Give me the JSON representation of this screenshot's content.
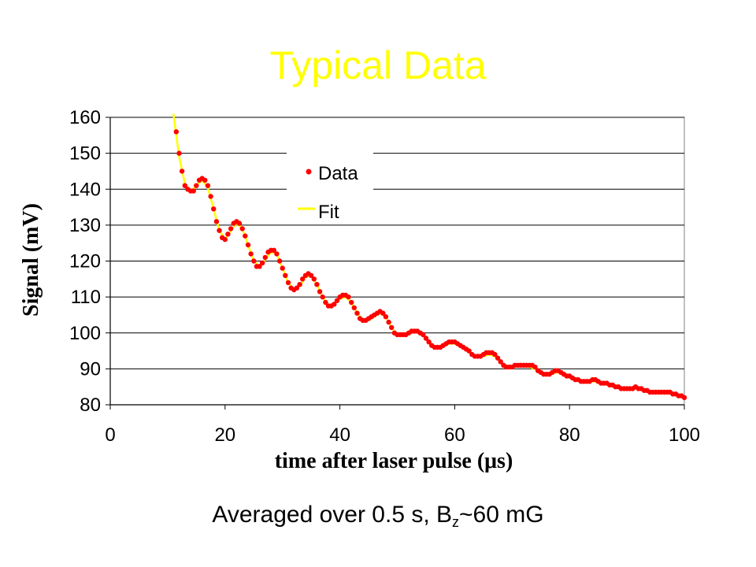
{
  "slide": {
    "title": "Typical Data",
    "caption_pre": "Averaged over 0.5 s, B",
    "caption_sub": "z",
    "caption_post": "~60 mG",
    "title_color": "#ffff00"
  },
  "chart_data": {
    "type": "scatter",
    "xlabel": "time after laser pulse (μs)",
    "ylabel": "Signal (mV)",
    "xlim": [
      0,
      100
    ],
    "ylim": [
      80,
      160
    ],
    "xticks": [
      0,
      20,
      40,
      60,
      80,
      100
    ],
    "yticks": [
      80,
      90,
      100,
      110,
      120,
      130,
      140,
      150,
      160
    ],
    "grid": "horizontal",
    "legend_position": "top-center",
    "series": [
      {
        "name": "Data",
        "kind": "markers",
        "color": "#ff0000",
        "points": [
          [
            11.5,
            156
          ],
          [
            12,
            150
          ],
          [
            12.5,
            145
          ],
          [
            13,
            141
          ],
          [
            13.5,
            140
          ],
          [
            14,
            139.5
          ],
          [
            14.5,
            139.5
          ],
          [
            15,
            141
          ],
          [
            15.5,
            142.5
          ],
          [
            16,
            143
          ],
          [
            16.5,
            142.5
          ],
          [
            17,
            141
          ],
          [
            17.5,
            138
          ],
          [
            18,
            134.5
          ],
          [
            18.5,
            131
          ],
          [
            19,
            128.5
          ],
          [
            19.5,
            126.5
          ],
          [
            20,
            126
          ],
          [
            20.5,
            127.5
          ],
          [
            21,
            129
          ],
          [
            21.5,
            130.5
          ],
          [
            22,
            131
          ],
          [
            22.5,
            130.5
          ],
          [
            23,
            129
          ],
          [
            23.5,
            127
          ],
          [
            24,
            124.5
          ],
          [
            24.5,
            122
          ],
          [
            25,
            120
          ],
          [
            25.5,
            118.5
          ],
          [
            26,
            118.5
          ],
          [
            26.5,
            119.5
          ],
          [
            27,
            121
          ],
          [
            27.5,
            122.5
          ],
          [
            28,
            123
          ],
          [
            28.5,
            123
          ],
          [
            29,
            122
          ],
          [
            29.5,
            120
          ],
          [
            30,
            118
          ],
          [
            30.5,
            116
          ],
          [
            31,
            114
          ],
          [
            31.5,
            112.5
          ],
          [
            32,
            112
          ],
          [
            32.5,
            112.5
          ],
          [
            33,
            113.5
          ],
          [
            33.5,
            115
          ],
          [
            34,
            116
          ],
          [
            34.5,
            116.5
          ],
          [
            35,
            116
          ],
          [
            35.5,
            115
          ],
          [
            36,
            113.5
          ],
          [
            36.5,
            111.5
          ],
          [
            37,
            110
          ],
          [
            37.5,
            108.5
          ],
          [
            38,
            107.5
          ],
          [
            38.5,
            107.5
          ],
          [
            39,
            108
          ],
          [
            39.5,
            109
          ],
          [
            40,
            110
          ],
          [
            40.5,
            110.5
          ],
          [
            41,
            110.5
          ],
          [
            41.5,
            110
          ],
          [
            42,
            108.5
          ],
          [
            42.5,
            107
          ],
          [
            43,
            105.5
          ],
          [
            43.5,
            104
          ],
          [
            44,
            103.5
          ],
          [
            44.5,
            103.5
          ],
          [
            45,
            104
          ],
          [
            45.5,
            104.5
          ],
          [
            46,
            105
          ],
          [
            46.5,
            105.5
          ],
          [
            47,
            106
          ],
          [
            47.5,
            105.5
          ],
          [
            48,
            104.5
          ],
          [
            48.5,
            103
          ],
          [
            49,
            101.5
          ],
          [
            49.5,
            100
          ],
          [
            50,
            99.5
          ],
          [
            50.5,
            99.5
          ],
          [
            51,
            99.5
          ],
          [
            51.5,
            99.5
          ],
          [
            52,
            100
          ],
          [
            52.5,
            100.5
          ],
          [
            53,
            100.5
          ],
          [
            53.5,
            100.5
          ],
          [
            54,
            100
          ],
          [
            54.5,
            99.5
          ],
          [
            55,
            98.5
          ],
          [
            55.5,
            97.5
          ],
          [
            56,
            96.5
          ],
          [
            56.5,
            96
          ],
          [
            57,
            96
          ],
          [
            57.5,
            96
          ],
          [
            58,
            96.5
          ],
          [
            58.5,
            97
          ],
          [
            59,
            97.5
          ],
          [
            59.5,
            97.5
          ],
          [
            60,
            97.5
          ],
          [
            60.5,
            97
          ],
          [
            61,
            96.5
          ],
          [
            61.5,
            96
          ],
          [
            62,
            95.5
          ],
          [
            62.5,
            95
          ],
          [
            63,
            94
          ],
          [
            63.5,
            93.5
          ],
          [
            64,
            93.5
          ],
          [
            64.5,
            93.5
          ],
          [
            65,
            94
          ],
          [
            65.5,
            94.5
          ],
          [
            66,
            94.5
          ],
          [
            66.5,
            94.5
          ],
          [
            67,
            94
          ],
          [
            67.5,
            93
          ],
          [
            68,
            92
          ],
          [
            68.5,
            91
          ],
          [
            69,
            90.5
          ],
          [
            69.5,
            90.5
          ],
          [
            70,
            90.5
          ],
          [
            70.5,
            91
          ],
          [
            71,
            91
          ],
          [
            71.5,
            91
          ],
          [
            72,
            91
          ],
          [
            72.5,
            91
          ],
          [
            73,
            91
          ],
          [
            73.5,
            91
          ],
          [
            74,
            90.5
          ],
          [
            74.5,
            89.5
          ],
          [
            75,
            89
          ],
          [
            75.5,
            88.5
          ],
          [
            76,
            88.5
          ],
          [
            76.5,
            88.5
          ],
          [
            77,
            89
          ],
          [
            77.5,
            89.5
          ],
          [
            78,
            89.5
          ],
          [
            78.5,
            89
          ],
          [
            79,
            88.5
          ],
          [
            79.5,
            88
          ],
          [
            80,
            88
          ],
          [
            80.5,
            87.5
          ],
          [
            81,
            87
          ],
          [
            81.5,
            87
          ],
          [
            82,
            86.5
          ],
          [
            82.5,
            86.5
          ],
          [
            83,
            86.5
          ],
          [
            83.5,
            86.5
          ],
          [
            84,
            87
          ],
          [
            84.5,
            87
          ],
          [
            85,
            86.5
          ],
          [
            85.5,
            86
          ],
          [
            86,
            86
          ],
          [
            86.5,
            86
          ],
          [
            87,
            85.5
          ],
          [
            87.5,
            85.5
          ],
          [
            88,
            85
          ],
          [
            88.5,
            85
          ],
          [
            89,
            84.5
          ],
          [
            89.5,
            84.5
          ],
          [
            90,
            84.5
          ],
          [
            90.5,
            84.5
          ],
          [
            91,
            84.5
          ],
          [
            91.5,
            85
          ],
          [
            92,
            84.5
          ],
          [
            92.5,
            84.5
          ],
          [
            93,
            84
          ],
          [
            93.5,
            84
          ],
          [
            94,
            83.5
          ],
          [
            94.5,
            83.5
          ],
          [
            95,
            83.5
          ],
          [
            95.5,
            83.5
          ],
          [
            96,
            83.5
          ],
          [
            96.5,
            83.5
          ],
          [
            97,
            83.5
          ],
          [
            97.5,
            83.5
          ],
          [
            98,
            83
          ],
          [
            98.5,
            83
          ],
          [
            99,
            82.5
          ],
          [
            99.5,
            82.5
          ],
          [
            100,
            82
          ]
        ]
      },
      {
        "name": "Fit",
        "kind": "line",
        "color": "#ffff00",
        "points": [
          [
            11,
            161
          ],
          [
            12,
            149
          ],
          [
            13,
            141.5
          ],
          [
            14,
            139.5
          ],
          [
            15,
            141
          ],
          [
            16,
            142.5
          ],
          [
            17,
            140.5
          ],
          [
            18,
            134.5
          ],
          [
            19,
            128.5
          ],
          [
            20,
            126
          ],
          [
            21,
            128.5
          ],
          [
            22,
            130.5
          ],
          [
            23,
            129
          ],
          [
            24,
            124.5
          ],
          [
            25,
            120
          ],
          [
            26,
            118.5
          ],
          [
            27,
            120.5
          ],
          [
            28,
            122.5
          ],
          [
            29,
            122
          ],
          [
            30,
            118
          ],
          [
            31,
            114
          ],
          [
            32,
            112
          ],
          [
            33,
            113
          ],
          [
            34,
            115.5
          ],
          [
            35,
            116
          ],
          [
            36,
            113.5
          ],
          [
            37,
            110
          ],
          [
            38,
            107.5
          ],
          [
            39,
            108
          ],
          [
            40,
            109.5
          ],
          [
            41,
            110
          ],
          [
            42,
            108.5
          ],
          [
            43,
            105.5
          ],
          [
            44,
            103.5
          ],
          [
            45,
            103.5
          ],
          [
            46,
            104.5
          ],
          [
            47,
            105.5
          ],
          [
            48,
            104.5
          ],
          [
            49,
            101.5
          ],
          [
            50,
            99.5
          ],
          [
            51,
            99.5
          ],
          [
            52,
            100
          ],
          [
            53,
            100.5
          ],
          [
            54,
            100
          ],
          [
            55,
            98.5
          ],
          [
            56,
            96.5
          ],
          [
            57,
            96
          ],
          [
            58,
            96.5
          ],
          [
            59,
            97
          ],
          [
            60,
            97
          ],
          [
            61,
            96.5
          ],
          [
            62,
            95.5
          ],
          [
            63,
            94
          ],
          [
            64,
            93.5
          ],
          [
            65,
            93.5
          ],
          [
            66,
            94
          ],
          [
            67,
            93.5
          ],
          [
            68,
            92
          ],
          [
            69,
            90.5
          ],
          [
            70,
            90.5
          ],
          [
            72,
            91
          ],
          [
            74,
            90
          ],
          [
            76,
            88.5
          ],
          [
            78,
            89
          ],
          [
            80,
            88
          ],
          [
            82,
            86.5
          ],
          [
            84,
            86.5
          ],
          [
            86,
            86
          ],
          [
            88,
            85
          ],
          [
            90,
            84.5
          ],
          [
            92,
            84.5
          ],
          [
            94,
            83.5
          ],
          [
            96,
            83.5
          ],
          [
            98,
            83
          ],
          [
            100,
            82
          ]
        ]
      }
    ]
  }
}
